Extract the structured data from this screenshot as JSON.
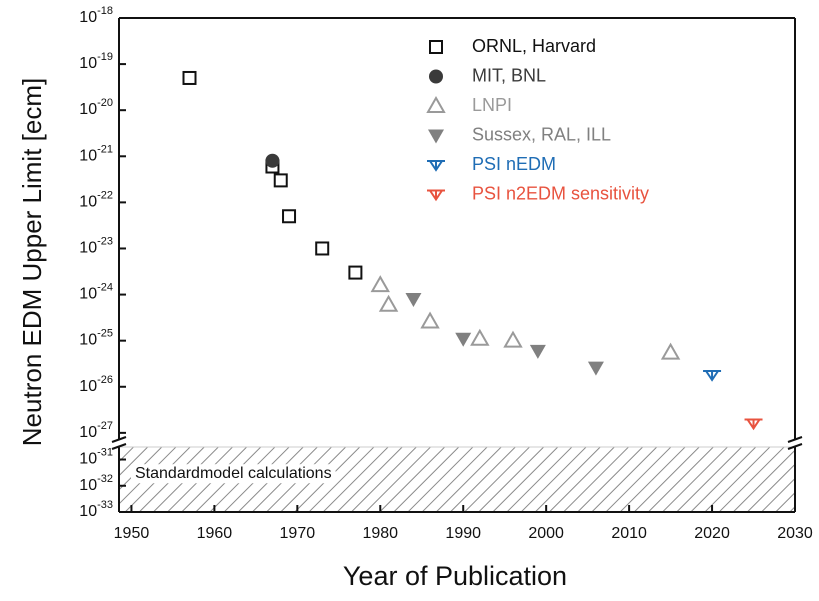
{
  "chart_data": {
    "type": "scatter",
    "x_label": "Year of Publication",
    "y_label": "Neutron EDM Upper Limit [ecm]",
    "log_y": true,
    "xlim": [
      1948.5,
      2030
    ],
    "xticks": [
      1950,
      1960,
      1970,
      1980,
      1990,
      2000,
      2010,
      2020,
      2030
    ],
    "ylim": [
      7e-28,
      1e-18
    ],
    "yticks": [
      {
        "value": 1e-18,
        "label": "10-18"
      },
      {
        "value": 1e-19,
        "label": "10-19"
      },
      {
        "value": 1e-20,
        "label": "10-20"
      },
      {
        "value": 1e-21,
        "label": "10-21"
      },
      {
        "value": 1e-22,
        "label": "10-22"
      },
      {
        "value": 1e-23,
        "label": "10-23"
      },
      {
        "value": 1e-24,
        "label": "10-24"
      },
      {
        "value": 1e-25,
        "label": "10-25"
      },
      {
        "value": 1e-26,
        "label": "10-26"
      },
      {
        "value": 1e-27,
        "label": "10-27"
      }
    ],
    "ylim_lower": [
      1e-33,
      3e-31
    ],
    "yticks_lower": [
      {
        "value": 1e-31,
        "label": "10-31"
      },
      {
        "value": 1e-32,
        "label": "10-32"
      },
      {
        "value": 1e-33,
        "label": "10-33"
      }
    ],
    "shaded_region_label": "Standardmodel calculations",
    "series": [
      {
        "name": "ORNL, Harvard",
        "color": "#111111",
        "marker": "square-open",
        "x": [
          1957,
          1967,
          1968,
          1969,
          1973,
          1977
        ],
        "values": [
          5e-20,
          6e-22,
          3e-22,
          5e-23,
          1e-23,
          3e-24
        ]
      },
      {
        "name": "MIT, BNL",
        "color": "#3a3a3a",
        "marker": "circle",
        "x": [
          1967
        ],
        "values": [
          8e-22
        ]
      },
      {
        "name": "LNPI",
        "color": "#9a9a9a",
        "marker": "triangle-up-open",
        "x": [
          1980,
          1981,
          1986,
          1992,
          1996,
          2015
        ],
        "values": [
          1.6e-24,
          6e-25,
          2.6e-25,
          1.1e-25,
          1e-25,
          5.5e-26
        ]
      },
      {
        "name": "Sussex, RAL, ILL",
        "color": "#808080",
        "marker": "triangle-down",
        "x": [
          1984,
          1990,
          1999,
          2006
        ],
        "values": [
          8e-25,
          1.1e-25,
          6e-26,
          2.6e-26
        ]
      },
      {
        "name": "PSI nEDM",
        "color": "#1f6db5",
        "marker": "limit",
        "x": [
          2020
        ],
        "values": [
          1.8e-26
        ]
      },
      {
        "name": "PSI n2EDM sensitivity",
        "color": "#e8533f",
        "marker": "limit",
        "x": [
          2025
        ],
        "values": [
          1.6e-27
        ]
      }
    ]
  }
}
